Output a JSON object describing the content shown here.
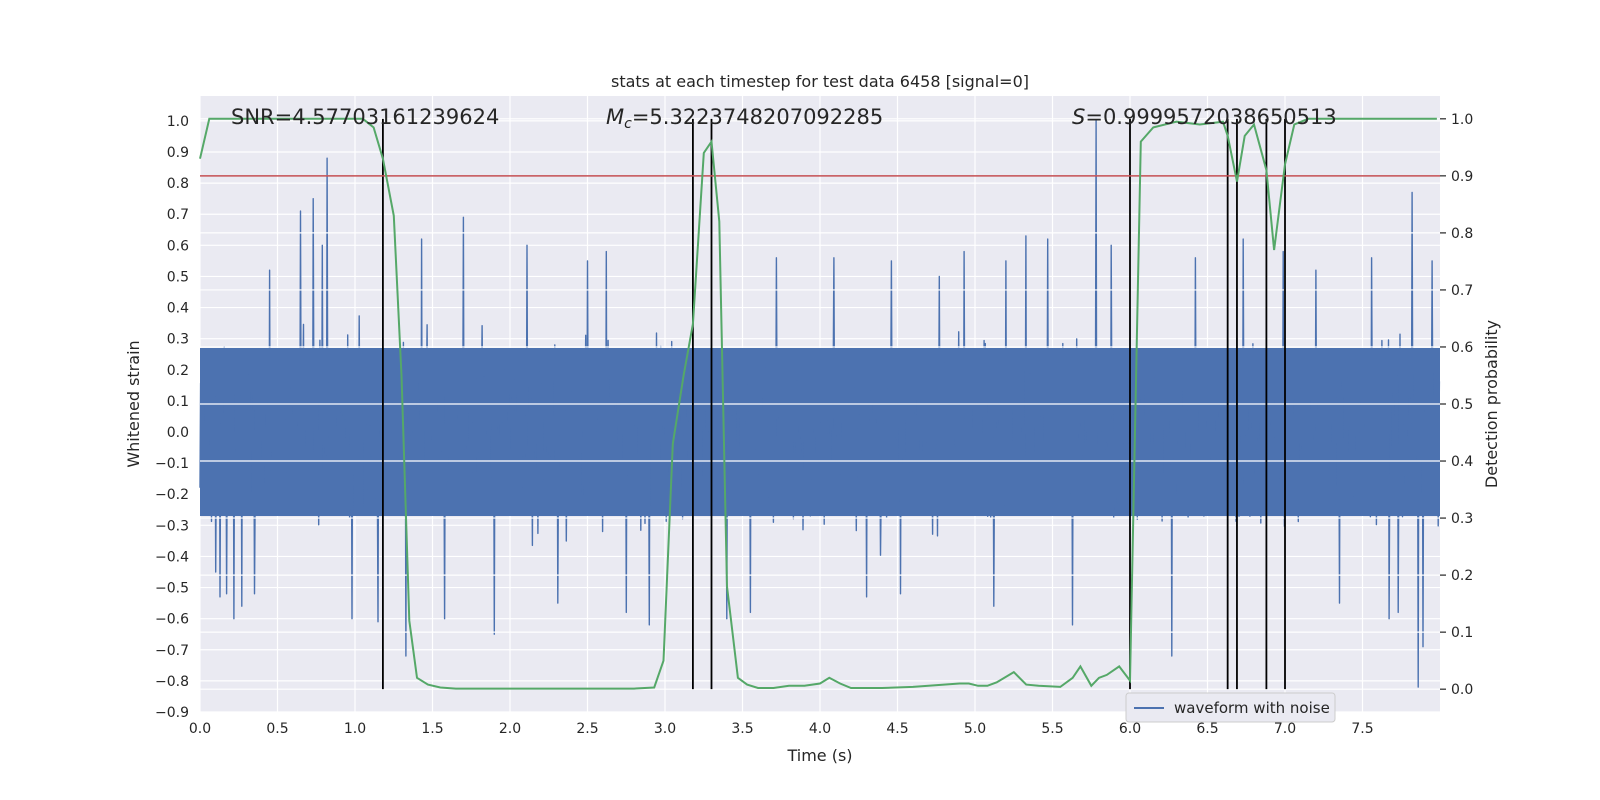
{
  "chart_data": {
    "type": "line",
    "title": "stats at each timestep for test data 6458 [signal=0]",
    "xlabel": "Time (s)",
    "ylabel": "Whitened strain",
    "ylabel_right": "Detection probability",
    "xlim": [
      0,
      8
    ],
    "ylim": [
      -0.9,
      1.08
    ],
    "ylim_right": [
      -0.04,
      1.04
    ],
    "xticks": [
      0.0,
      0.5,
      1.0,
      1.5,
      2.0,
      2.5,
      3.0,
      3.5,
      4.0,
      4.5,
      5.0,
      5.5,
      6.0,
      6.5,
      7.0,
      7.5
    ],
    "xtick_labels": [
      "0.0",
      "0.5",
      "1.0",
      "1.5",
      "2.0",
      "2.5",
      "3.0",
      "3.5",
      "4.0",
      "4.5",
      "5.0",
      "5.5",
      "6.0",
      "6.5",
      "7.0",
      "7.5"
    ],
    "yticks": [
      -0.9,
      -0.8,
      -0.7,
      -0.6,
      -0.5,
      -0.4,
      -0.3,
      -0.2,
      -0.1,
      0.0,
      0.1,
      0.2,
      0.3,
      0.4,
      0.5,
      0.6,
      0.7,
      0.8,
      0.9,
      1.0
    ],
    "ytick_labels": [
      "−0.9",
      "−0.8",
      "−0.7",
      "−0.6",
      "−0.5",
      "−0.4",
      "−0.3",
      "−0.2",
      "−0.1",
      "0.0",
      "0.1",
      "0.2",
      "0.3",
      "0.4",
      "0.5",
      "0.6",
      "0.7",
      "0.8",
      "0.9",
      "1.0"
    ],
    "yticks_right": [
      0.0,
      0.1,
      0.2,
      0.3,
      0.4,
      0.5,
      0.6,
      0.7,
      0.8,
      0.9,
      1.0
    ],
    "ytick_labels_right": [
      "0.0",
      "0.1",
      "0.2",
      "0.3",
      "0.4",
      "0.5",
      "0.6",
      "0.7",
      "0.8",
      "0.9",
      "1.0"
    ],
    "annotations": {
      "snr": "SNR=4.57703161239624",
      "mc_symbol": "M",
      "mc_sub": "c",
      "mc_value": "=5.3223748207092285",
      "s_symbol": "S",
      "s_value": "=0.9999572038650513"
    },
    "legend": {
      "label": "waveform with noise",
      "position": "lower-right"
    },
    "colors": {
      "waveform": "#4c72b0",
      "probability": "#55a868",
      "threshold": "#c44e52",
      "vlines": "#000000",
      "background": "#eaeaf2",
      "grid": "#ffffff",
      "text": "#262626"
    },
    "threshold": 0.9,
    "vlines_x": [
      1.18,
      3.18,
      3.3,
      6.0,
      6.63,
      6.69,
      6.88,
      7.0
    ],
    "waveform": {
      "sample_rate": 256,
      "duration": 8,
      "envelope_ymax": 0.27,
      "envelope_ymin": -0.27,
      "extreme_spikes": [
        {
          "t": 0.1,
          "v": -0.45
        },
        {
          "t": 0.13,
          "v": -0.53
        },
        {
          "t": 0.17,
          "v": -0.52
        },
        {
          "t": 0.22,
          "v": -0.6
        },
        {
          "t": 0.27,
          "v": -0.56
        },
        {
          "t": 0.35,
          "v": -0.52
        },
        {
          "t": 0.45,
          "v": 0.52
        },
        {
          "t": 0.65,
          "v": 0.71
        },
        {
          "t": 0.73,
          "v": 0.75
        },
        {
          "t": 0.82,
          "v": 0.88
        },
        {
          "t": 0.79,
          "v": 0.6
        },
        {
          "t": 0.98,
          "v": -0.6
        },
        {
          "t": 1.15,
          "v": -0.61
        },
        {
          "t": 1.33,
          "v": -0.72
        },
        {
          "t": 1.43,
          "v": 0.62
        },
        {
          "t": 1.58,
          "v": -0.6
        },
        {
          "t": 1.7,
          "v": 0.69
        },
        {
          "t": 1.9,
          "v": -0.65
        },
        {
          "t": 2.11,
          "v": 0.6
        },
        {
          "t": 2.31,
          "v": -0.55
        },
        {
          "t": 2.5,
          "v": 0.55
        },
        {
          "t": 2.62,
          "v": 0.58
        },
        {
          "t": 2.75,
          "v": -0.58
        },
        {
          "t": 2.9,
          "v": -0.62
        },
        {
          "t": 3.4,
          "v": -0.6
        },
        {
          "t": 3.55,
          "v": -0.58
        },
        {
          "t": 3.72,
          "v": 0.56
        },
        {
          "t": 4.09,
          "v": 0.56
        },
        {
          "t": 4.3,
          "v": -0.53
        },
        {
          "t": 4.46,
          "v": 0.55
        },
        {
          "t": 4.52,
          "v": -0.52
        },
        {
          "t": 4.77,
          "v": 0.5
        },
        {
          "t": 4.93,
          "v": 0.58
        },
        {
          "t": 5.12,
          "v": -0.56
        },
        {
          "t": 5.2,
          "v": 0.55
        },
        {
          "t": 5.33,
          "v": 0.63
        },
        {
          "t": 5.47,
          "v": 0.62
        },
        {
          "t": 5.63,
          "v": -0.62
        },
        {
          "t": 5.78,
          "v": 1.0
        },
        {
          "t": 5.88,
          "v": 0.6
        },
        {
          "t": 6.27,
          "v": -0.72
        },
        {
          "t": 6.42,
          "v": 0.56
        },
        {
          "t": 6.73,
          "v": 0.62
        },
        {
          "t": 6.99,
          "v": 0.58
        },
        {
          "t": 7.2,
          "v": 0.52
        },
        {
          "t": 7.35,
          "v": -0.55
        },
        {
          "t": 7.56,
          "v": 0.56
        },
        {
          "t": 7.67,
          "v": -0.6
        },
        {
          "t": 7.73,
          "v": -0.58
        },
        {
          "t": 7.82,
          "v": 0.77
        },
        {
          "t": 7.86,
          "v": 0.78
        },
        {
          "t": 7.86,
          "v": -0.82
        },
        {
          "t": 7.89,
          "v": -0.69
        },
        {
          "t": 7.95,
          "v": 0.55
        }
      ]
    },
    "probability": {
      "x": [
        0.0,
        0.06,
        0.5,
        1.0,
        1.05,
        1.12,
        1.18,
        1.25,
        1.3,
        1.35,
        1.4,
        1.47,
        1.55,
        1.65,
        2.0,
        2.5,
        2.8,
        2.93,
        2.99,
        3.05,
        3.12,
        3.18,
        3.25,
        3.3,
        3.35,
        3.4,
        3.47,
        3.53,
        3.6,
        3.7,
        3.8,
        3.9,
        4.0,
        4.06,
        4.13,
        4.2,
        4.27,
        4.4,
        4.6,
        4.9,
        4.96,
        5.02,
        5.08,
        5.14,
        5.25,
        5.33,
        5.41,
        5.55,
        5.63,
        5.68,
        5.75,
        5.8,
        5.85,
        5.93,
        6.0,
        6.07,
        6.15,
        6.3,
        6.45,
        6.6,
        6.63,
        6.69,
        6.74,
        6.8,
        6.88,
        6.93,
        7.0,
        7.06,
        7.15,
        7.5,
        7.98
      ],
      "y": [
        0.93,
        1.0,
        1.0,
        1.0,
        1.0,
        0.985,
        0.93,
        0.83,
        0.55,
        0.12,
        0.02,
        0.008,
        0.003,
        0.001,
        0.001,
        0.001,
        0.001,
        0.003,
        0.05,
        0.43,
        0.55,
        0.64,
        0.94,
        0.96,
        0.82,
        0.18,
        0.02,
        0.008,
        0.002,
        0.002,
        0.006,
        0.006,
        0.01,
        0.02,
        0.01,
        0.002,
        0.002,
        0.002,
        0.004,
        0.01,
        0.01,
        0.006,
        0.006,
        0.012,
        0.03,
        0.008,
        0.006,
        0.004,
        0.02,
        0.04,
        0.006,
        0.02,
        0.025,
        0.04,
        0.015,
        0.96,
        0.985,
        0.995,
        0.99,
        0.995,
        0.97,
        0.89,
        0.97,
        0.99,
        0.91,
        0.77,
        0.92,
        0.99,
        1.0,
        1.0,
        1.0
      ]
    }
  }
}
